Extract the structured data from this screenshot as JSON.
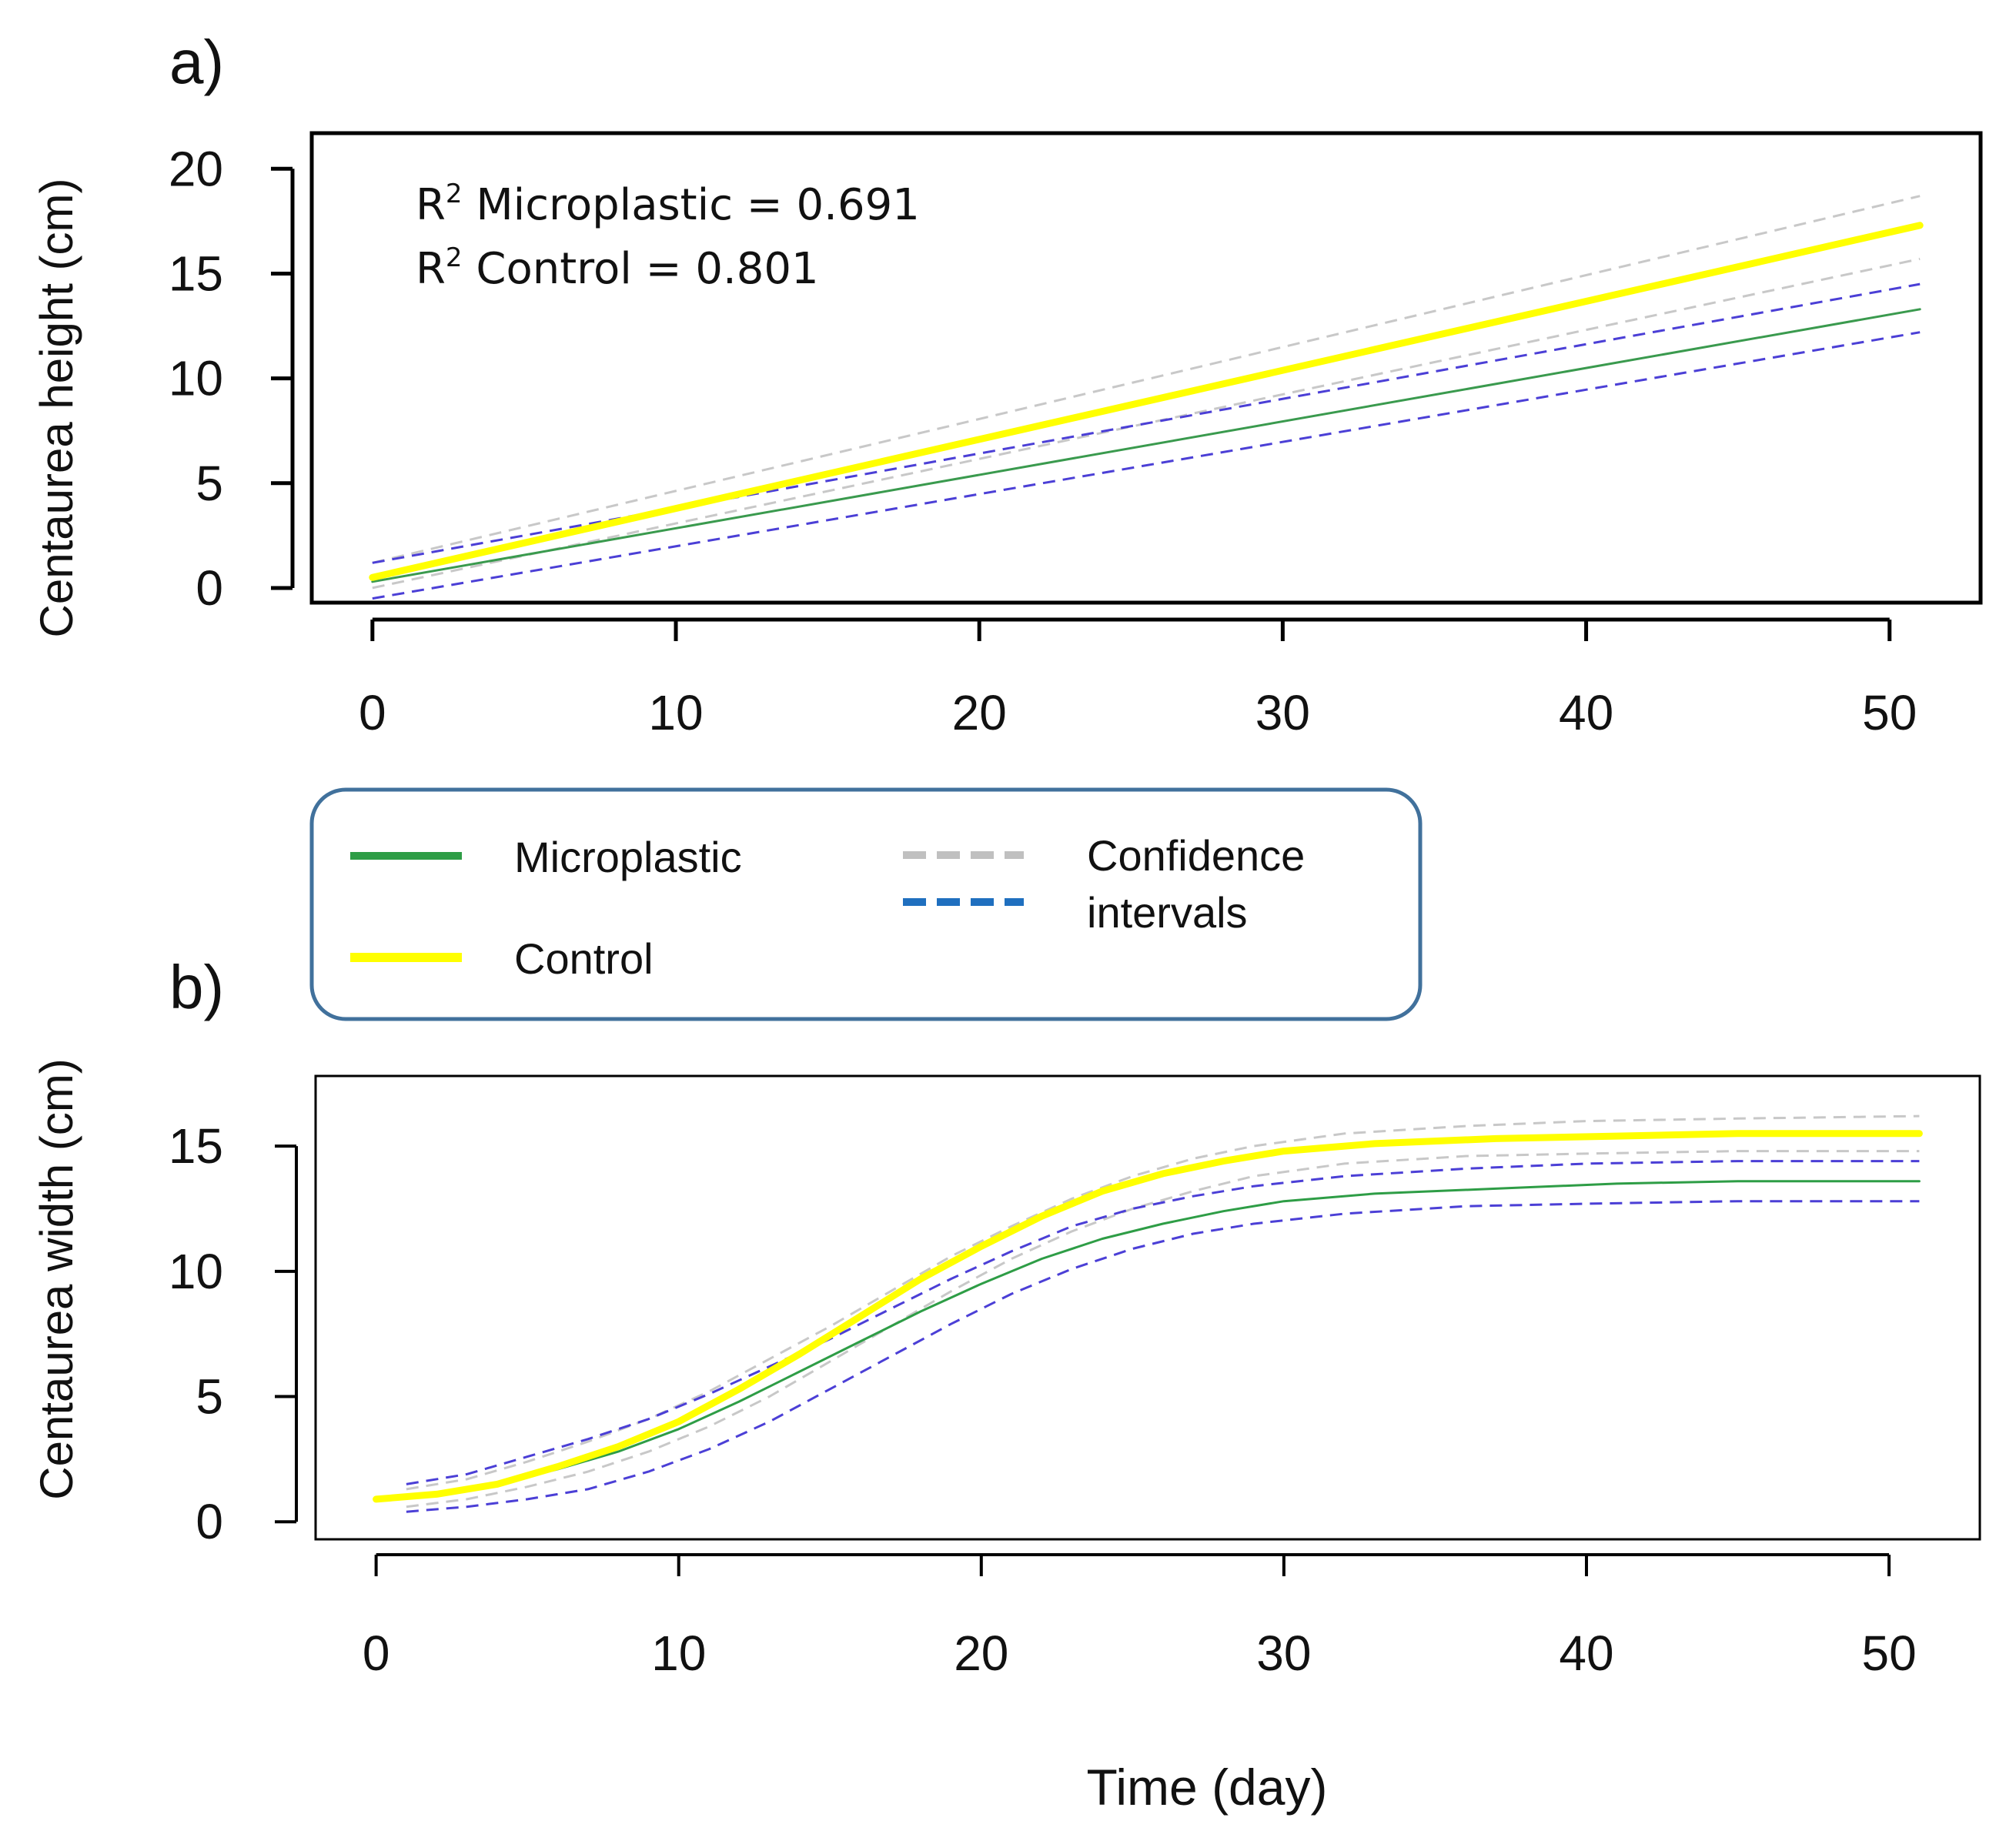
{
  "chart_data": [
    {
      "id": "a",
      "type": "line",
      "panel_label": "a)",
      "xlabel": "",
      "ylabel": "Centaurea height (cm)",
      "xlim": [
        -2,
        53
      ],
      "ylim": [
        -0.7,
        21.7
      ],
      "xticks": [
        0,
        10,
        20,
        30,
        40,
        50
      ],
      "xtick_labels": [
        "0",
        "10",
        "20",
        "30",
        "40",
        "50"
      ],
      "yticks": [
        0,
        5,
        10,
        15,
        20
      ],
      "ytick_labels": [
        "0",
        "5",
        "10",
        "15",
        "20"
      ],
      "annotations": [
        {
          "prefix": "R",
          "sup": "2",
          "text": " Microplastic = 0.691"
        },
        {
          "prefix": "R",
          "sup": "2",
          "text": " Control = 0.801"
        }
      ],
      "series": [
        {
          "name": "Control upper CI",
          "role": "ci",
          "color": "#c8c8c8",
          "style": "dashed",
          "width": 3,
          "x": [
            0,
            51
          ],
          "y": [
            1.2,
            18.7
          ]
        },
        {
          "name": "Control lower CI",
          "role": "ci",
          "color": "#c8c8c8",
          "style": "dashed",
          "width": 3,
          "x": [
            0,
            51
          ],
          "y": [
            0.0,
            15.7
          ]
        },
        {
          "name": "Microplastic upper CI",
          "role": "ci",
          "color": "#4b3fd6",
          "style": "dashed",
          "width": 3,
          "x": [
            0,
            51
          ],
          "y": [
            1.2,
            14.5
          ]
        },
        {
          "name": "Microplastic lower CI",
          "role": "ci",
          "color": "#4b3fd6",
          "style": "dashed",
          "width": 3,
          "x": [
            0,
            51
          ],
          "y": [
            -0.5,
            12.2
          ]
        },
        {
          "name": "Microplastic",
          "role": "fit",
          "color": "#3a9a4e",
          "style": "solid",
          "width": 3,
          "x": [
            0,
            51
          ],
          "y": [
            0.3,
            13.3
          ]
        },
        {
          "name": "Control",
          "role": "fit",
          "color": "#ffff00",
          "style": "solid",
          "width": 9,
          "x": [
            0,
            51
          ],
          "y": [
            0.5,
            17.3
          ]
        }
      ]
    },
    {
      "id": "b",
      "type": "line",
      "panel_label": "b)",
      "xlabel": "Time (day)",
      "ylabel": "Centaurea width (cm)",
      "xlim": [
        -2,
        53
      ],
      "ylim": [
        -0.7,
        17.8
      ],
      "xticks": [
        0,
        10,
        20,
        30,
        40,
        50
      ],
      "xtick_labels": [
        "0",
        "10",
        "20",
        "30",
        "40",
        "50"
      ],
      "yticks": [
        0,
        5,
        10,
        15
      ],
      "ytick_labels": [
        "0",
        "5",
        "10",
        "15"
      ],
      "series": [
        {
          "name": "Control upper CI",
          "role": "ci",
          "color": "#c8c8c8",
          "style": "dashed",
          "width": 3,
          "x": [
            1,
            3,
            5,
            7,
            9,
            11,
            13,
            15,
            17,
            19,
            21,
            23,
            25,
            27,
            29,
            32,
            36,
            40,
            45,
            51
          ],
          "y": [
            1.3,
            1.7,
            2.4,
            3.2,
            4.1,
            5.2,
            6.5,
            7.8,
            9.2,
            10.6,
            11.8,
            12.9,
            13.8,
            14.5,
            15.0,
            15.5,
            15.8,
            16.0,
            16.1,
            16.2
          ]
        },
        {
          "name": "Control lower CI",
          "role": "ci",
          "color": "#c8c8c8",
          "style": "dashed",
          "width": 3,
          "x": [
            1,
            3,
            5,
            7,
            9,
            11,
            13,
            15,
            17,
            19,
            21,
            23,
            25,
            27,
            29,
            32,
            36,
            40,
            45,
            51
          ],
          "y": [
            0.6,
            0.9,
            1.4,
            2.0,
            2.8,
            3.8,
            5.0,
            6.4,
            7.8,
            9.2,
            10.5,
            11.6,
            12.5,
            13.2,
            13.8,
            14.3,
            14.6,
            14.7,
            14.8,
            14.8
          ]
        },
        {
          "name": "Microplastic upper CI",
          "role": "ci",
          "color": "#4b3fd6",
          "style": "dashed",
          "width": 3,
          "x": [
            1,
            3,
            5,
            7,
            9,
            11,
            13,
            15,
            17,
            19,
            21,
            23,
            25,
            27,
            29,
            32,
            36,
            40,
            45,
            51
          ],
          "y": [
            1.5,
            1.9,
            2.6,
            3.3,
            4.1,
            5.1,
            6.2,
            7.3,
            8.5,
            9.7,
            10.8,
            11.8,
            12.5,
            13.0,
            13.4,
            13.8,
            14.1,
            14.3,
            14.4,
            14.4
          ]
        },
        {
          "name": "Microplastic lower CI",
          "role": "ci",
          "color": "#4b3fd6",
          "style": "dashed",
          "width": 3,
          "x": [
            1,
            3,
            5,
            7,
            9,
            11,
            13,
            15,
            17,
            19,
            21,
            23,
            25,
            27,
            29,
            32,
            36,
            40,
            45,
            51
          ],
          "y": [
            0.4,
            0.6,
            0.9,
            1.3,
            2.0,
            2.9,
            4.0,
            5.3,
            6.6,
            7.9,
            9.1,
            10.1,
            10.9,
            11.5,
            11.9,
            12.3,
            12.6,
            12.7,
            12.8,
            12.8
          ]
        },
        {
          "name": "Microplastic",
          "role": "fit",
          "color": "#2e9d46",
          "style": "solid",
          "width": 3,
          "x": [
            0,
            2,
            4,
            6,
            8,
            10,
            12,
            14,
            16,
            18,
            20,
            22,
            24,
            26,
            28,
            30,
            33,
            37,
            41,
            45,
            51
          ],
          "y": [
            0.9,
            1.1,
            1.5,
            2.1,
            2.8,
            3.7,
            4.8,
            6.0,
            7.2,
            8.4,
            9.5,
            10.5,
            11.3,
            11.9,
            12.4,
            12.8,
            13.1,
            13.3,
            13.5,
            13.6,
            13.6
          ]
        },
        {
          "name": "Control",
          "role": "fit",
          "color": "#ffff00",
          "style": "solid",
          "width": 9,
          "x": [
            0,
            2,
            4,
            6,
            8,
            10,
            12,
            14,
            16,
            18,
            20,
            22,
            24,
            26,
            28,
            30,
            33,
            37,
            41,
            45,
            51
          ],
          "y": [
            0.9,
            1.1,
            1.5,
            2.2,
            3.0,
            4.0,
            5.3,
            6.7,
            8.2,
            9.7,
            11.0,
            12.2,
            13.2,
            13.9,
            14.4,
            14.8,
            15.1,
            15.3,
            15.4,
            15.5,
            15.5
          ]
        }
      ]
    }
  ],
  "legend": {
    "items": [
      {
        "label": "Microplastic",
        "color": "#2e9d46",
        "style": "solid"
      },
      {
        "label": "Control",
        "color": "#ffff00",
        "style": "solid"
      },
      {
        "label": "Confidence intervals",
        "lines": [
          "Confidence",
          "intervals"
        ],
        "colors": [
          "#c0c0c0",
          "#1f6fbf"
        ],
        "style": "dashed"
      }
    ],
    "border_color": "#41719c"
  }
}
